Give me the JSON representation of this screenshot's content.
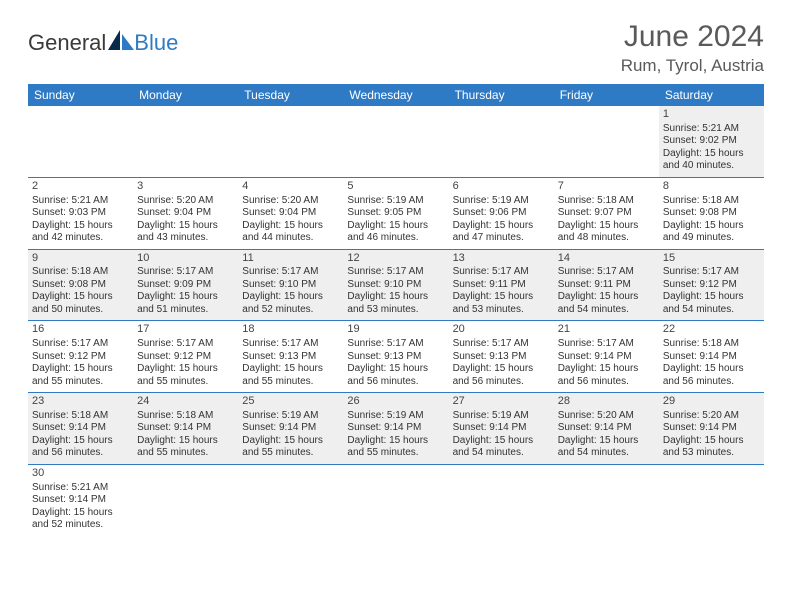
{
  "brand": {
    "word1": "General",
    "word2": "Blue"
  },
  "title": {
    "month": "June 2024",
    "location": "Rum, Tyrol, Austria"
  },
  "colors": {
    "header_bg": "#2f7ac4",
    "header_fg": "#ffffff",
    "row_alt_bg": "#efefef",
    "divider": "#2f7ac4",
    "page_bg": "#ffffff",
    "text": "#333333",
    "title_text": "#5a5a5a"
  },
  "typography": {
    "title_fontsize": 30,
    "location_fontsize": 17,
    "weekday_fontsize": 12,
    "cell_fontsize": 10,
    "logo_fontsize": 22
  },
  "weekdays": [
    "Sunday",
    "Monday",
    "Tuesday",
    "Wednesday",
    "Thursday",
    "Friday",
    "Saturday"
  ],
  "weeks": [
    [
      null,
      null,
      null,
      null,
      null,
      null,
      {
        "n": "1",
        "sr": "Sunrise: 5:21 AM",
        "ss": "Sunset: 9:02 PM",
        "d1": "Daylight: 15 hours",
        "d2": "and 40 minutes."
      }
    ],
    [
      {
        "n": "2",
        "sr": "Sunrise: 5:21 AM",
        "ss": "Sunset: 9:03 PM",
        "d1": "Daylight: 15 hours",
        "d2": "and 42 minutes."
      },
      {
        "n": "3",
        "sr": "Sunrise: 5:20 AM",
        "ss": "Sunset: 9:04 PM",
        "d1": "Daylight: 15 hours",
        "d2": "and 43 minutes."
      },
      {
        "n": "4",
        "sr": "Sunrise: 5:20 AM",
        "ss": "Sunset: 9:04 PM",
        "d1": "Daylight: 15 hours",
        "d2": "and 44 minutes."
      },
      {
        "n": "5",
        "sr": "Sunrise: 5:19 AM",
        "ss": "Sunset: 9:05 PM",
        "d1": "Daylight: 15 hours",
        "d2": "and 46 minutes."
      },
      {
        "n": "6",
        "sr": "Sunrise: 5:19 AM",
        "ss": "Sunset: 9:06 PM",
        "d1": "Daylight: 15 hours",
        "d2": "and 47 minutes."
      },
      {
        "n": "7",
        "sr": "Sunrise: 5:18 AM",
        "ss": "Sunset: 9:07 PM",
        "d1": "Daylight: 15 hours",
        "d2": "and 48 minutes."
      },
      {
        "n": "8",
        "sr": "Sunrise: 5:18 AM",
        "ss": "Sunset: 9:08 PM",
        "d1": "Daylight: 15 hours",
        "d2": "and 49 minutes."
      }
    ],
    [
      {
        "n": "9",
        "sr": "Sunrise: 5:18 AM",
        "ss": "Sunset: 9:08 PM",
        "d1": "Daylight: 15 hours",
        "d2": "and 50 minutes."
      },
      {
        "n": "10",
        "sr": "Sunrise: 5:17 AM",
        "ss": "Sunset: 9:09 PM",
        "d1": "Daylight: 15 hours",
        "d2": "and 51 minutes."
      },
      {
        "n": "11",
        "sr": "Sunrise: 5:17 AM",
        "ss": "Sunset: 9:10 PM",
        "d1": "Daylight: 15 hours",
        "d2": "and 52 minutes."
      },
      {
        "n": "12",
        "sr": "Sunrise: 5:17 AM",
        "ss": "Sunset: 9:10 PM",
        "d1": "Daylight: 15 hours",
        "d2": "and 53 minutes."
      },
      {
        "n": "13",
        "sr": "Sunrise: 5:17 AM",
        "ss": "Sunset: 9:11 PM",
        "d1": "Daylight: 15 hours",
        "d2": "and 53 minutes."
      },
      {
        "n": "14",
        "sr": "Sunrise: 5:17 AM",
        "ss": "Sunset: 9:11 PM",
        "d1": "Daylight: 15 hours",
        "d2": "and 54 minutes."
      },
      {
        "n": "15",
        "sr": "Sunrise: 5:17 AM",
        "ss": "Sunset: 9:12 PM",
        "d1": "Daylight: 15 hours",
        "d2": "and 54 minutes."
      }
    ],
    [
      {
        "n": "16",
        "sr": "Sunrise: 5:17 AM",
        "ss": "Sunset: 9:12 PM",
        "d1": "Daylight: 15 hours",
        "d2": "and 55 minutes."
      },
      {
        "n": "17",
        "sr": "Sunrise: 5:17 AM",
        "ss": "Sunset: 9:12 PM",
        "d1": "Daylight: 15 hours",
        "d2": "and 55 minutes."
      },
      {
        "n": "18",
        "sr": "Sunrise: 5:17 AM",
        "ss": "Sunset: 9:13 PM",
        "d1": "Daylight: 15 hours",
        "d2": "and 55 minutes."
      },
      {
        "n": "19",
        "sr": "Sunrise: 5:17 AM",
        "ss": "Sunset: 9:13 PM",
        "d1": "Daylight: 15 hours",
        "d2": "and 56 minutes."
      },
      {
        "n": "20",
        "sr": "Sunrise: 5:17 AM",
        "ss": "Sunset: 9:13 PM",
        "d1": "Daylight: 15 hours",
        "d2": "and 56 minutes."
      },
      {
        "n": "21",
        "sr": "Sunrise: 5:17 AM",
        "ss": "Sunset: 9:14 PM",
        "d1": "Daylight: 15 hours",
        "d2": "and 56 minutes."
      },
      {
        "n": "22",
        "sr": "Sunrise: 5:18 AM",
        "ss": "Sunset: 9:14 PM",
        "d1": "Daylight: 15 hours",
        "d2": "and 56 minutes."
      }
    ],
    [
      {
        "n": "23",
        "sr": "Sunrise: 5:18 AM",
        "ss": "Sunset: 9:14 PM",
        "d1": "Daylight: 15 hours",
        "d2": "and 56 minutes."
      },
      {
        "n": "24",
        "sr": "Sunrise: 5:18 AM",
        "ss": "Sunset: 9:14 PM",
        "d1": "Daylight: 15 hours",
        "d2": "and 55 minutes."
      },
      {
        "n": "25",
        "sr": "Sunrise: 5:19 AM",
        "ss": "Sunset: 9:14 PM",
        "d1": "Daylight: 15 hours",
        "d2": "and 55 minutes."
      },
      {
        "n": "26",
        "sr": "Sunrise: 5:19 AM",
        "ss": "Sunset: 9:14 PM",
        "d1": "Daylight: 15 hours",
        "d2": "and 55 minutes."
      },
      {
        "n": "27",
        "sr": "Sunrise: 5:19 AM",
        "ss": "Sunset: 9:14 PM",
        "d1": "Daylight: 15 hours",
        "d2": "and 54 minutes."
      },
      {
        "n": "28",
        "sr": "Sunrise: 5:20 AM",
        "ss": "Sunset: 9:14 PM",
        "d1": "Daylight: 15 hours",
        "d2": "and 54 minutes."
      },
      {
        "n": "29",
        "sr": "Sunrise: 5:20 AM",
        "ss": "Sunset: 9:14 PM",
        "d1": "Daylight: 15 hours",
        "d2": "and 53 minutes."
      }
    ],
    [
      {
        "n": "30",
        "sr": "Sunrise: 5:21 AM",
        "ss": "Sunset: 9:14 PM",
        "d1": "Daylight: 15 hours",
        "d2": "and 52 minutes."
      },
      null,
      null,
      null,
      null,
      null,
      null
    ]
  ]
}
